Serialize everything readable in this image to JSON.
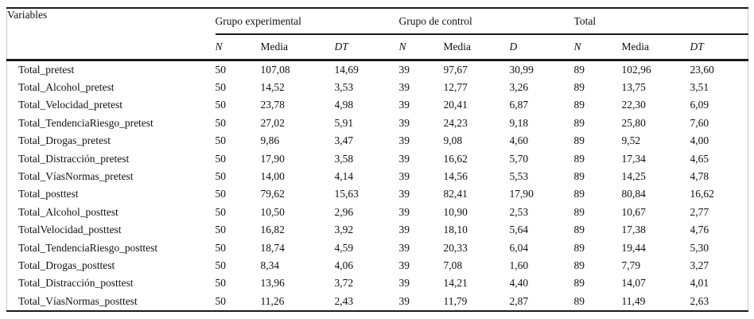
{
  "table": {
    "variables_header": "Variables",
    "groups": [
      {
        "label": "Grupo experimental",
        "cols": [
          "N",
          "Media",
          "DT"
        ]
      },
      {
        "label": "Grupo de control",
        "cols": [
          "N",
          "Media",
          "D"
        ]
      },
      {
        "label": "Total",
        "cols": [
          "N",
          "Media",
          "DT"
        ]
      }
    ],
    "rows": [
      {
        "variable": "Total_pretest",
        "values": [
          "50",
          "107,08",
          "14,69",
          "39",
          "97,67",
          "30,99",
          "89",
          "102,96",
          "23,60"
        ]
      },
      {
        "variable": "Total_Alcohol_pretest",
        "values": [
          "50",
          "14,52",
          "3,53",
          "39",
          "12,77",
          "3,26",
          "89",
          "13,75",
          "3,51"
        ]
      },
      {
        "variable": "Total_Velocidad_pretest",
        "values": [
          "50",
          "23,78",
          "4,98",
          "39",
          "20,41",
          "6,87",
          "89",
          "22,30",
          "6,09"
        ]
      },
      {
        "variable": "Total_TendenciaRiesgo_pretest",
        "values": [
          "50",
          "27,02",
          "5,91",
          "39",
          "24,23",
          "9,18",
          "89",
          "25,80",
          "7,60"
        ]
      },
      {
        "variable": "Total_Drogas_pretest",
        "values": [
          "50",
          "9,86",
          "3,47",
          "39",
          "9,08",
          "4,60",
          "89",
          "9,52",
          "4,00"
        ]
      },
      {
        "variable": "Total_Distracción_pretest",
        "values": [
          "50",
          "17,90",
          "3,58",
          "39",
          "16,62",
          "5,70",
          "89",
          "17,34",
          "4,65"
        ]
      },
      {
        "variable": "Total_VíasNormas_pretest",
        "values": [
          "50",
          "14,00",
          "4,14",
          "39",
          "14,56",
          "5,53",
          "89",
          "14,25",
          "4,78"
        ]
      },
      {
        "variable": "Total_posttest",
        "values": [
          "50",
          "79,62",
          "15,63",
          "39",
          "82,41",
          "17,90",
          "89",
          "80,84",
          "16,62"
        ]
      },
      {
        "variable": "Total_Alcohol_posttest",
        "values": [
          "50",
          "10,50",
          "2,96",
          "39",
          "10,90",
          "2,53",
          "89",
          "10,67",
          "2,77"
        ]
      },
      {
        "variable": "TotalVelocidad_posttest",
        "values": [
          "50",
          "16,82",
          "3,92",
          "39",
          "18,10",
          "5,64",
          "89",
          "17,38",
          "4,76"
        ]
      },
      {
        "variable": "Total_TendenciaRiesgo_posttest",
        "values": [
          "50",
          "18,74",
          "4,59",
          "39",
          "20,33",
          "6,04",
          "89",
          "19,44",
          "5,30"
        ]
      },
      {
        "variable": "Total_Drogas_posttest",
        "values": [
          "50",
          "8,34",
          "4,06",
          "39",
          "7,08",
          "1,60",
          "89",
          "7,79",
          "3,27"
        ]
      },
      {
        "variable": "Total_Distracción_posttest",
        "values": [
          "50",
          "13,96",
          "3,72",
          "39",
          "14,21",
          "4,40",
          "89",
          "14,07",
          "4,01"
        ]
      },
      {
        "variable": "Total_VíasNormas_posttest",
        "values": [
          "50",
          "11,26",
          "2,43",
          "39",
          "11,79",
          "2,87",
          "89",
          "11,49",
          "2,63"
        ]
      }
    ]
  }
}
